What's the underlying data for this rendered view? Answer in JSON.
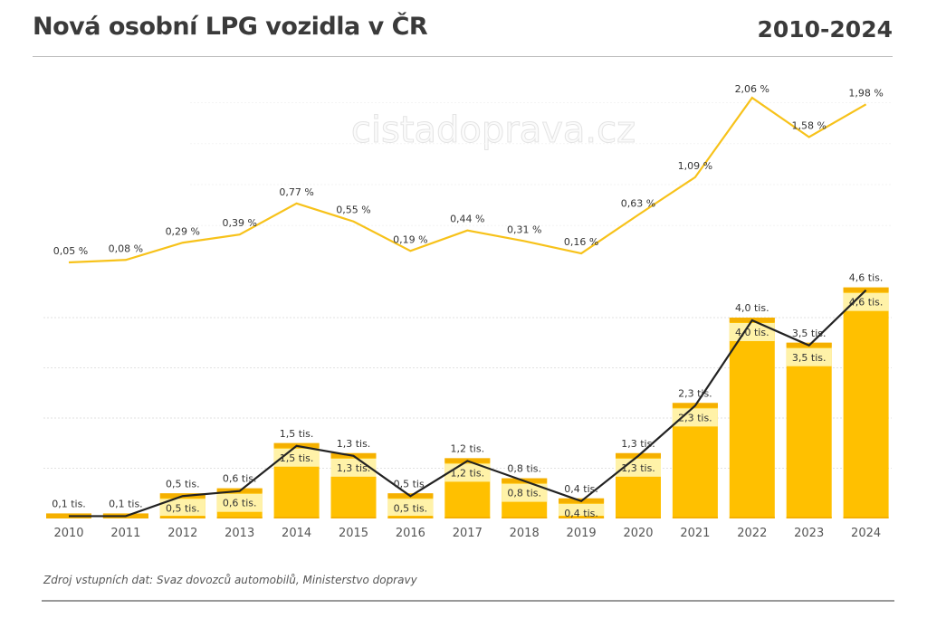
{
  "header": {
    "title": "Nová osobní LPG vozidla v ČR",
    "period": "2010-2024"
  },
  "watermark": "cistadoprava.cz",
  "source": "Zdroj vstupních dat: Svaz dovozců automobilů, Ministerstvo dopravy",
  "chart_data": [
    {
      "type": "line",
      "categories": [
        "2010",
        "2011",
        "2012",
        "2013",
        "2014",
        "2015",
        "2016",
        "2017",
        "2018",
        "2019",
        "2020",
        "2021",
        "2022",
        "2023",
        "2024"
      ],
      "values": [
        0.05,
        0.08,
        0.29,
        0.39,
        0.77,
        0.55,
        0.19,
        0.44,
        0.31,
        0.16,
        0.63,
        1.09,
        2.06,
        1.58,
        1.98
      ],
      "labels": [
        "0,05 %",
        "0,08 %",
        "0,29 %",
        "0,39 %",
        "0,77 %",
        "0,55 %",
        "0,19 %",
        "0,44 %",
        "0,31 %",
        "0,16 %",
        "0,63 %",
        "1,09 %",
        "2,06 %",
        "1,58 %",
        "1,98 %"
      ],
      "color": "#f7c21a"
    },
    {
      "type": "bar",
      "categories": [
        "2010",
        "2011",
        "2012",
        "2013",
        "2014",
        "2015",
        "2016",
        "2017",
        "2018",
        "2019",
        "2020",
        "2021",
        "2022",
        "2023",
        "2024"
      ],
      "values": [
        0.1,
        0.1,
        0.5,
        0.6,
        1.5,
        1.3,
        0.5,
        1.2,
        0.8,
        0.4,
        1.3,
        2.3,
        4.0,
        3.5,
        4.6
      ],
      "labels": [
        "0,1 tis.",
        "0,1 tis.",
        "0,5 tis.",
        "0,6 tis.",
        "1,5 tis.",
        "1,3 tis.",
        "0,5 tis.",
        "1,2 tis.",
        "0,8 tis.",
        "0,4 tis.",
        "1,3 tis.",
        "2,3 tis.",
        "4,0 tis.",
        "3,5 tis.",
        "4,6 tis."
      ],
      "overlay_line": true,
      "ylim": [
        0,
        4.6
      ],
      "grid": true,
      "colors": {
        "bar": "#ffc000",
        "band": "#fff2a8",
        "top": "#f5b000",
        "line": "#222222"
      }
    }
  ]
}
